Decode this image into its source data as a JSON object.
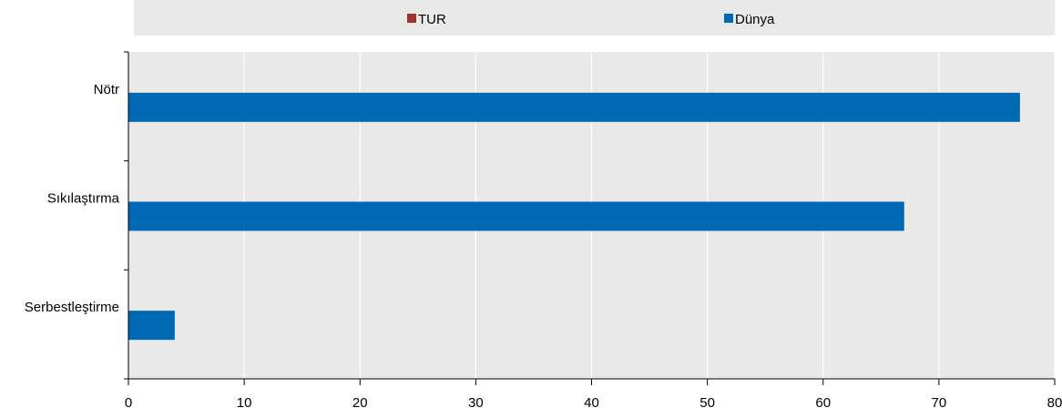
{
  "chart_data": {
    "type": "bar",
    "orientation": "horizontal",
    "categories": [
      "Nötr",
      "Sıkılaştırma",
      "Serbestleştirme"
    ],
    "series": [
      {
        "name": "TUR",
        "color": "#a0342a",
        "values": [
          null,
          null,
          null
        ]
      },
      {
        "name": "Dünya",
        "color": "#0069b4",
        "values": [
          77,
          67,
          4
        ]
      }
    ],
    "xlim": [
      0,
      80
    ],
    "xticks": [
      0,
      10,
      20,
      30,
      40,
      50,
      60,
      70,
      80
    ],
    "grid": true,
    "legend_position": "top"
  },
  "colors": {
    "plot_background": "#e9e9e9",
    "gridline": "#ffffff",
    "axis": "#000000"
  }
}
